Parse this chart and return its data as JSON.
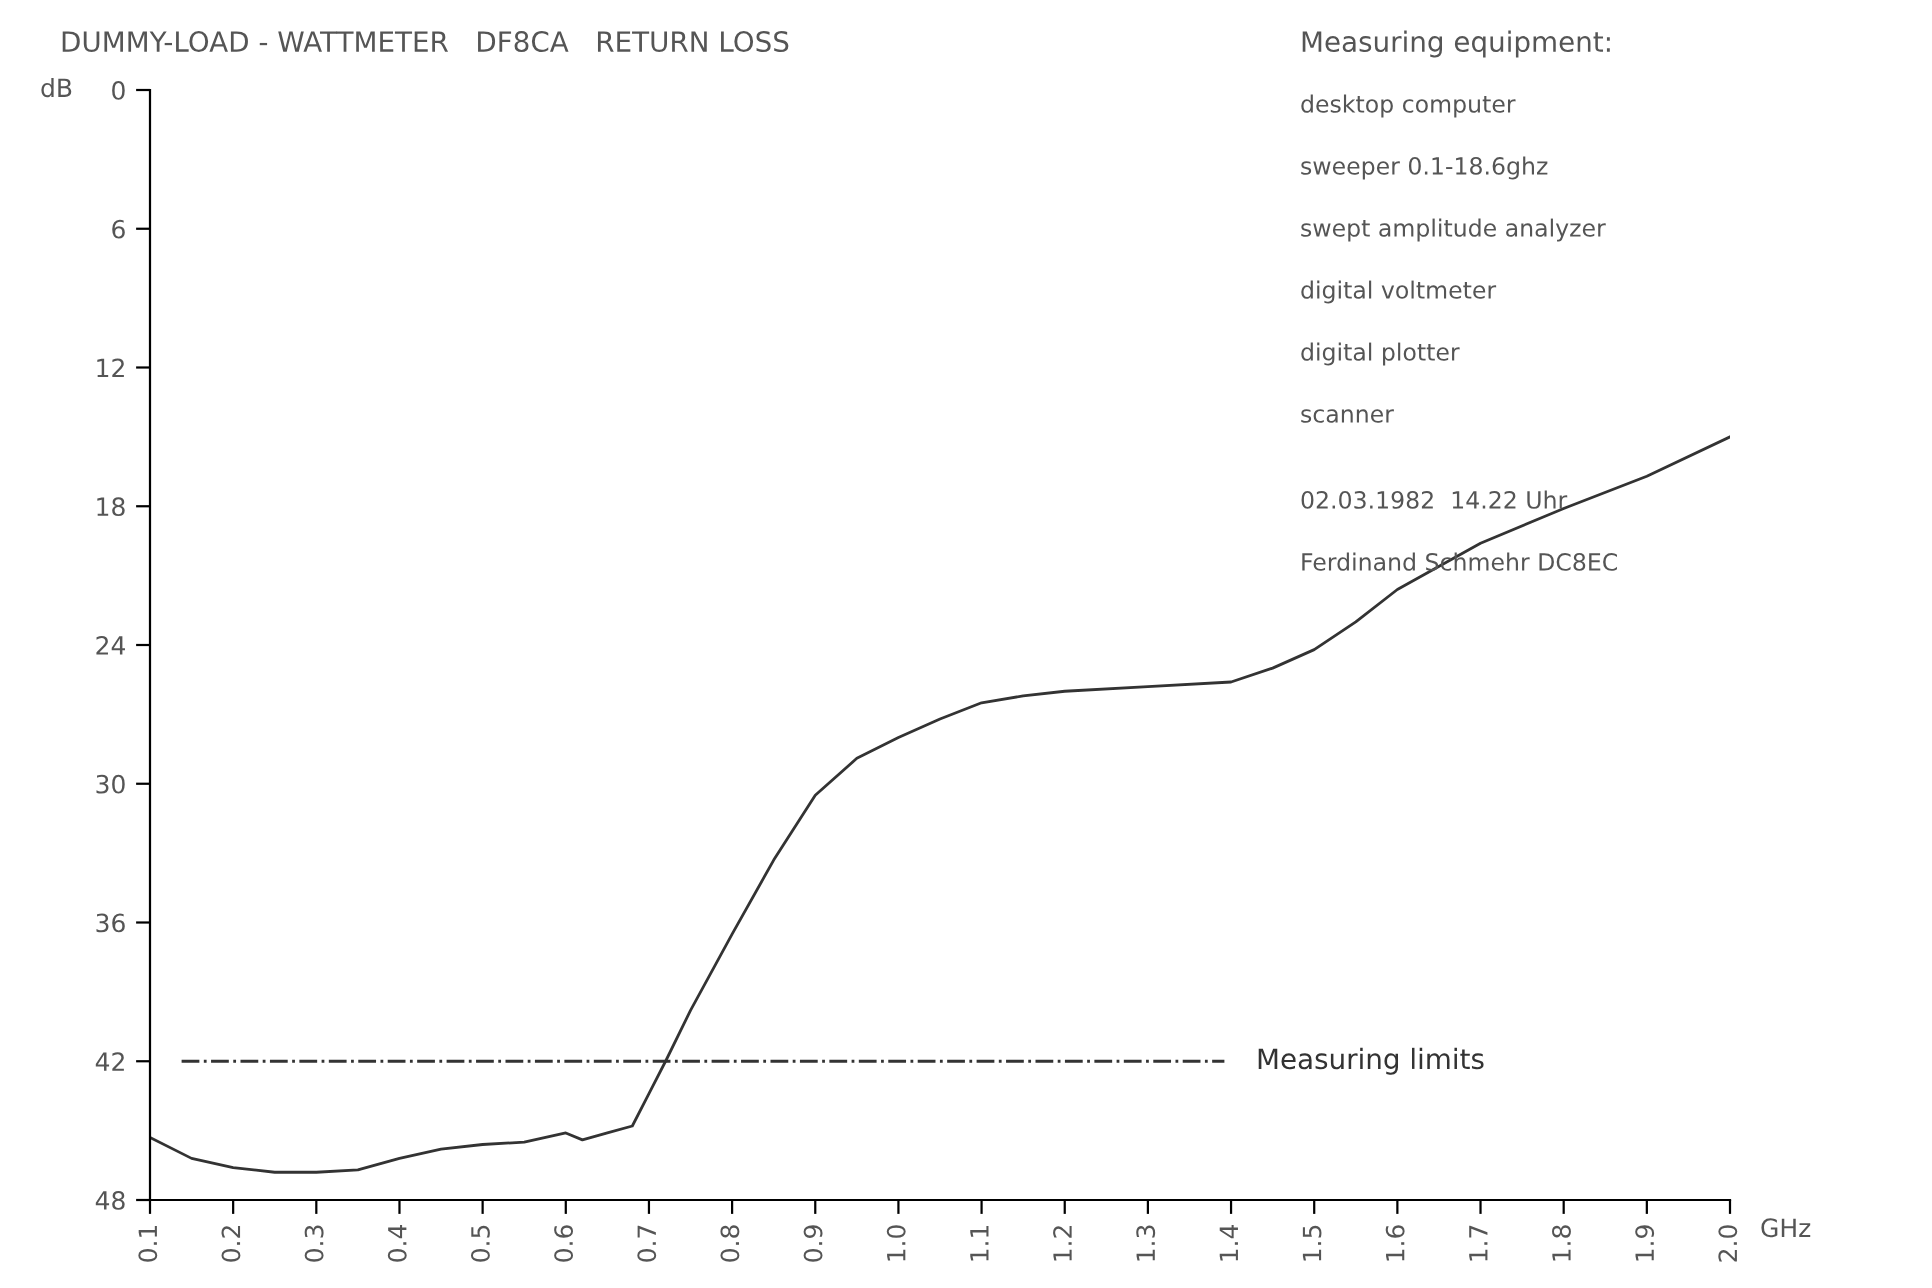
{
  "chart_data": {
    "type": "line",
    "title": "DUMMY-LOAD - WATTMETER   DF8CA   RETURN LOSS",
    "xlabel": "GHz",
    "ylabel": "dB",
    "x": [
      0.1,
      0.15,
      0.2,
      0.25,
      0.3,
      0.35,
      0.4,
      0.45,
      0.5,
      0.55,
      0.6,
      0.62,
      0.65,
      0.68,
      0.7,
      0.72,
      0.75,
      0.8,
      0.85,
      0.9,
      0.95,
      1.0,
      1.05,
      1.1,
      1.15,
      1.2,
      1.3,
      1.4,
      1.45,
      1.5,
      1.55,
      1.6,
      1.7,
      1.8,
      1.9,
      2.0
    ],
    "series": [
      {
        "color": "#333333",
        "values": [
          45.3,
          46.2,
          46.6,
          46.8,
          46.8,
          46.7,
          46.2,
          45.8,
          45.6,
          45.5,
          45.1,
          45.4,
          45.1,
          44.8,
          43.4,
          42.0,
          39.8,
          36.5,
          33.3,
          30.5,
          28.9,
          28.0,
          27.2,
          26.5,
          26.2,
          26.0,
          25.8,
          25.6,
          25.0,
          24.2,
          23.0,
          21.6,
          19.6,
          18.1,
          16.7,
          15.0
        ]
      }
    ],
    "xlim": [
      0.1,
      2.0
    ],
    "ylim": [
      48,
      0
    ],
    "xticks": [
      0.1,
      0.2,
      0.3,
      0.4,
      0.5,
      0.6,
      0.7,
      0.8,
      0.9,
      {
        "value": 1.0,
        "label": "1.0"
      },
      1.1,
      1.2,
      1.3,
      1.4,
      1.5,
      1.6,
      1.7,
      1.8,
      1.9,
      {
        "value": 2.0,
        "label": "2.0"
      }
    ],
    "yticks": [
      0,
      6,
      12,
      18,
      24,
      30,
      36,
      42,
      48
    ],
    "ref_lines": [
      {
        "axis": "y",
        "value": 42,
        "label": "Measuring limits",
        "line_style": "dashdot",
        "color": "#333333"
      }
    ],
    "annotations": [
      "Measuring equipment:",
      "desktop computer",
      "sweeper 0.1-18.6ghz",
      "swept amplitude analyzer",
      "digital voltmeter",
      "digital plotter",
      "scanner",
      "02.03.1982  14.22 Uhr",
      "Ferdinand Schmehr DC8EC"
    ],
    "grid": false,
    "legend": false,
    "marker": "none",
    "line_style": "solid"
  }
}
